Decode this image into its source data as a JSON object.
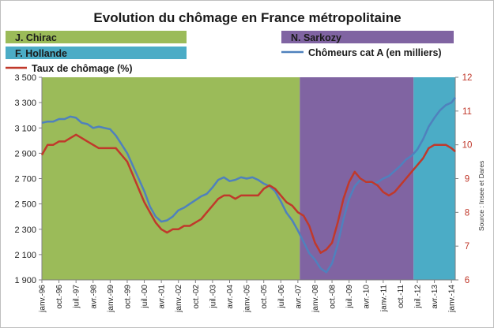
{
  "chart_data": {
    "type": "line",
    "title": "Evolution du chômage en France métropolitaine",
    "source": "Source : Insee et Dares",
    "x_start": "janv.-96",
    "x_end": "mars-14",
    "x_ticks": [
      "janv.-96",
      "oct.-96",
      "juil.-97",
      "avr.-98",
      "janv.-99",
      "oct.-99",
      "juil.-00",
      "avr.-01",
      "janv.-02",
      "oct.-02",
      "juil.-03",
      "avr.-04",
      "janv.-05",
      "oct.-05",
      "juil.-06",
      "avr.-07",
      "janv.-08",
      "oct.-08",
      "juil.-09",
      "avr.-10",
      "janv.-11",
      "oct.-11",
      "juil.-12",
      "avr.-13",
      "janv.-14"
    ],
    "left_axis": {
      "ylim": [
        1900,
        3500
      ],
      "ticks": [
        "1 900",
        "2 100",
        "2 300",
        "2 500",
        "2 700",
        "2 900",
        "3 100",
        "3 300",
        "3 500"
      ]
    },
    "right_axis": {
      "ylim": [
        6,
        12
      ],
      "ticks": [
        "6",
        "7",
        "8",
        "9",
        "10",
        "11",
        "12"
      ]
    },
    "periods": [
      {
        "name": "J. Chirac",
        "start": "janv.-96",
        "end": "mai-07",
        "color": "#9bbb59"
      },
      {
        "name": "N. Sarkozy",
        "start": "mai-07",
        "end": "mai-12",
        "color": "#8064a2"
      },
      {
        "name": "F. Hollande",
        "start": "mai-12",
        "end": "mars-14",
        "color": "#4bacc6"
      }
    ],
    "series": [
      {
        "name": "Chômeurs cat A (en milliers)",
        "axis": "left",
        "color": "#4f81bd",
        "x": [
          "janv.-96",
          "avr.-96",
          "juil.-96",
          "oct.-96",
          "janv.-97",
          "avr.-97",
          "juil.-97",
          "oct.-97",
          "janv.-98",
          "avr.-98",
          "juil.-98",
          "oct.-98",
          "janv.-99",
          "avr.-99",
          "juil.-99",
          "oct.-99",
          "janv.-00",
          "avr.-00",
          "juil.-00",
          "oct.-00",
          "janv.-01",
          "avr.-01",
          "juil.-01",
          "oct.-01",
          "janv.-02",
          "avr.-02",
          "juil.-02",
          "oct.-02",
          "janv.-03",
          "avr.-03",
          "juil.-03",
          "oct.-03",
          "janv.-04",
          "avr.-04",
          "juil.-04",
          "oct.-04",
          "janv.-05",
          "avr.-05",
          "juil.-05",
          "oct.-05",
          "janv.-06",
          "avr.-06",
          "juil.-06",
          "oct.-06",
          "janv.-07",
          "avr.-07",
          "juil.-07",
          "oct.-07",
          "janv.-08",
          "avr.-08",
          "juil.-08",
          "oct.-08",
          "janv.-09",
          "avr.-09",
          "juil.-09",
          "oct.-09",
          "janv.-10",
          "avr.-10",
          "juil.-10",
          "oct.-10",
          "janv.-11",
          "avr.-11",
          "juil.-11",
          "oct.-11",
          "janv.-12",
          "avr.-12",
          "juil.-12",
          "oct.-12",
          "janv.-13",
          "avr.-13",
          "juil.-13",
          "oct.-13",
          "janv.-14",
          "mars-14"
        ],
        "values": [
          3140,
          3150,
          3150,
          3170,
          3170,
          3190,
          3180,
          3140,
          3130,
          3100,
          3110,
          3100,
          3090,
          3040,
          2970,
          2900,
          2800,
          2700,
          2600,
          2480,
          2400,
          2360,
          2370,
          2400,
          2450,
          2470,
          2500,
          2530,
          2560,
          2580,
          2630,
          2690,
          2710,
          2680,
          2690,
          2710,
          2700,
          2710,
          2690,
          2660,
          2640,
          2600,
          2520,
          2430,
          2370,
          2290,
          2200,
          2110,
          2060,
          1990,
          1960,
          2030,
          2180,
          2380,
          2540,
          2640,
          2690,
          2680,
          2660,
          2670,
          2700,
          2720,
          2760,
          2800,
          2850,
          2880,
          2930,
          3010,
          3110,
          3180,
          3240,
          3280,
          3300,
          3340
        ]
      },
      {
        "name": "Taux de chômage (%)",
        "axis": "right",
        "color": "#c0392b",
        "x": [
          "janv.-96",
          "avr.-96",
          "juil.-96",
          "oct.-96",
          "janv.-97",
          "avr.-97",
          "juil.-97",
          "oct.-97",
          "janv.-98",
          "avr.-98",
          "juil.-98",
          "oct.-98",
          "janv.-99",
          "avr.-99",
          "juil.-99",
          "oct.-99",
          "janv.-00",
          "avr.-00",
          "juil.-00",
          "oct.-00",
          "janv.-01",
          "avr.-01",
          "juil.-01",
          "oct.-01",
          "janv.-02",
          "avr.-02",
          "juil.-02",
          "oct.-02",
          "janv.-03",
          "avr.-03",
          "juil.-03",
          "oct.-03",
          "janv.-04",
          "avr.-04",
          "juil.-04",
          "oct.-04",
          "janv.-05",
          "avr.-05",
          "juil.-05",
          "oct.-05",
          "janv.-06",
          "avr.-06",
          "juil.-06",
          "oct.-06",
          "janv.-07",
          "avr.-07",
          "juil.-07",
          "oct.-07",
          "janv.-08",
          "avr.-08",
          "juil.-08",
          "oct.-08",
          "janv.-09",
          "avr.-09",
          "juil.-09",
          "oct.-09",
          "janv.-10",
          "avr.-10",
          "juil.-10",
          "oct.-10",
          "janv.-11",
          "avr.-11",
          "juil.-11",
          "oct.-11",
          "janv.-12",
          "avr.-12",
          "juil.-12",
          "oct.-12",
          "janv.-13",
          "avr.-13",
          "juil.-13",
          "oct.-13",
          "janv.-14",
          "mars-14"
        ],
        "values": [
          9.7,
          10.0,
          10.0,
          10.1,
          10.1,
          10.2,
          10.3,
          10.2,
          10.1,
          10.0,
          9.9,
          9.9,
          9.9,
          9.9,
          9.7,
          9.5,
          9.1,
          8.7,
          8.3,
          8.0,
          7.7,
          7.5,
          7.4,
          7.5,
          7.5,
          7.6,
          7.6,
          7.7,
          7.8,
          8.0,
          8.2,
          8.4,
          8.5,
          8.5,
          8.4,
          8.5,
          8.5,
          8.5,
          8.5,
          8.7,
          8.8,
          8.7,
          8.5,
          8.3,
          8.2,
          8.0,
          7.9,
          7.6,
          7.1,
          6.8,
          6.9,
          7.1,
          7.7,
          8.4,
          8.9,
          9.2,
          9.0,
          8.9,
          8.9,
          8.8,
          8.6,
          8.5,
          8.6,
          8.8,
          9.0,
          9.2,
          9.4,
          9.6,
          9.9,
          10.0,
          10.0,
          10.0,
          9.9,
          9.8
        ]
      }
    ]
  }
}
